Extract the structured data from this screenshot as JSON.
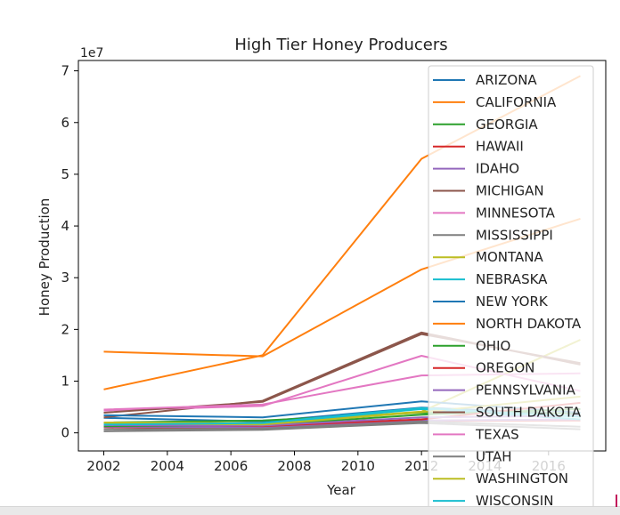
{
  "chart_data": {
    "type": "line",
    "title": "High Tier Honey Producers",
    "xlabel": "Year",
    "ylabel": "Honey Production",
    "y_offset_label": "1e7",
    "xlim": [
      2001.2,
      2017.8
    ],
    "ylim": [
      -3500000,
      72000000
    ],
    "x": [
      2002,
      2007,
      2012,
      2017
    ],
    "x_ticks": [
      2002,
      2004,
      2006,
      2008,
      2010,
      2012,
      2014,
      2016
    ],
    "y_ticks": [
      0,
      10000000,
      20000000,
      30000000,
      40000000,
      50000000,
      60000000,
      70000000
    ],
    "y_tick_labels": [
      "0",
      "1",
      "2",
      "3",
      "4",
      "5",
      "6",
      "7"
    ],
    "legend_position": "right, overlapping plot",
    "grid": false,
    "series": [
      {
        "name": "ARIZONA",
        "color": "#1f77b4",
        "values": [
          2900000,
          2200000,
          4900000,
          3600000
        ]
      },
      {
        "name": "CALIFORNIA",
        "color": "#ff7f0e",
        "values": [
          8400000,
          15000000,
          53000000,
          69000000
        ]
      },
      {
        "name": "GEORGIA",
        "color": "#2ca02c",
        "values": [
          2000000,
          2400000,
          3900000,
          3800000
        ]
      },
      {
        "name": "HAWAII",
        "color": "#d62728",
        "values": [
          1100000,
          1000000,
          2300000,
          2400000
        ]
      },
      {
        "name": "IDAHO",
        "color": "#9467bd",
        "values": [
          1200000,
          1100000,
          2400000,
          2600000
        ]
      },
      {
        "name": "MICHIGAN",
        "color": "#8c564b",
        "values": [
          3000000,
          6200000,
          19400000,
          13200000
        ]
      },
      {
        "name": "MINNESOTA",
        "color": "#e377c2",
        "values": [
          4300000,
          5200000,
          14900000,
          8100000
        ]
      },
      {
        "name": "MISSISSIPPI",
        "color": "#7f7f7f",
        "values": [
          300000,
          600000,
          1900000,
          700000
        ]
      },
      {
        "name": "MONTANA",
        "color": "#bcbd22",
        "values": [
          2000000,
          1900000,
          4100000,
          18000000
        ]
      },
      {
        "name": "NEBRASKA",
        "color": "#17becf",
        "values": [
          1500000,
          1800000,
          4600000,
          2600000
        ]
      },
      {
        "name": "NEW YORK",
        "color": "#1f77b4",
        "values": [
          3400000,
          3000000,
          6100000,
          3900000
        ]
      },
      {
        "name": "NORTH DAKOTA",
        "color": "#ff7f0e",
        "values": [
          15700000,
          14800000,
          31600000,
          41400000
        ]
      },
      {
        "name": "OHIO",
        "color": "#2ca02c",
        "values": [
          1300000,
          1500000,
          3500000,
          4600000
        ]
      },
      {
        "name": "OREGON",
        "color": "#d62728",
        "values": [
          1700000,
          1300000,
          2600000,
          5800000
        ]
      },
      {
        "name": "PENNSYLVANIA",
        "color": "#9467bd",
        "values": [
          1500000,
          1400000,
          3000000,
          3300000
        ]
      },
      {
        "name": "SOUTH DAKOTA",
        "color": "#8c564b",
        "values": [
          3900000,
          6000000,
          19100000,
          13500000
        ]
      },
      {
        "name": "TEXAS",
        "color": "#e377c2",
        "values": [
          4500000,
          5500000,
          11100000,
          11500000
        ]
      },
      {
        "name": "UTAH",
        "color": "#7f7f7f",
        "values": [
          700000,
          800000,
          2200000,
          1200000
        ]
      },
      {
        "name": "WASHINGTON",
        "color": "#bcbd22",
        "values": [
          1800000,
          1600000,
          4000000,
          7000000
        ]
      },
      {
        "name": "WISCONSIN",
        "color": "#17becf",
        "values": [
          1600000,
          1900000,
          4800000,
          3100000
        ]
      }
    ]
  }
}
